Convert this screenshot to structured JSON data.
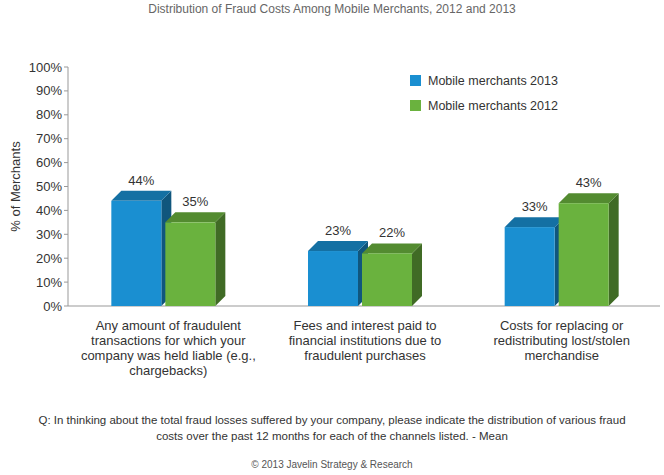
{
  "chart_data": {
    "type": "bar",
    "title": "Distribution of Fraud Costs Among Mobile Merchants, 2012 and 2013",
    "y_label": "% of Merchants",
    "categories": [
      "Any amount of fraudulent transactions for which your company was held liable (e.g., chargebacks)",
      "Fees and interest paid to financial institutions due to fraudulent purchases",
      "Costs for replacing or redistributing lost/stolen merchandise"
    ],
    "series": [
      {
        "name": "Mobile merchants 2013",
        "color": "#1a8fd1",
        "values": [
          44,
          23,
          33
        ],
        "value_labels": [
          "44%",
          "23%",
          "33%"
        ]
      },
      {
        "name": "Mobile merchants 2012",
        "color": "#6ab23e",
        "values": [
          35,
          22,
          43
        ],
        "value_labels": [
          "35%",
          "22%",
          "43%"
        ]
      }
    ],
    "ylim": [
      0,
      100
    ],
    "yticks": [
      {
        "value": 0,
        "label": "0%"
      },
      {
        "value": 10,
        "label": "10%"
      },
      {
        "value": 20,
        "label": "20%"
      },
      {
        "value": 30,
        "label": "30%"
      },
      {
        "value": 40,
        "label": "40%"
      },
      {
        "value": 50,
        "label": "50%"
      },
      {
        "value": 60,
        "label": "60%"
      },
      {
        "value": 70,
        "label": "70%"
      },
      {
        "value": 80,
        "label": "80%"
      },
      {
        "value": 90,
        "label": "90%"
      },
      {
        "value": 100,
        "label": "100%"
      }
    ],
    "grid": false,
    "legend": "upper right",
    "data_labels": true,
    "annotations": [
      "Q:  In thinking about the total fraud losses suffered by your company, please indicate the distribution of various fraud costs over the past 12 months for each of the channels listed. - Mean",
      "© 2013 Javelin Strategy & Research"
    ]
  }
}
